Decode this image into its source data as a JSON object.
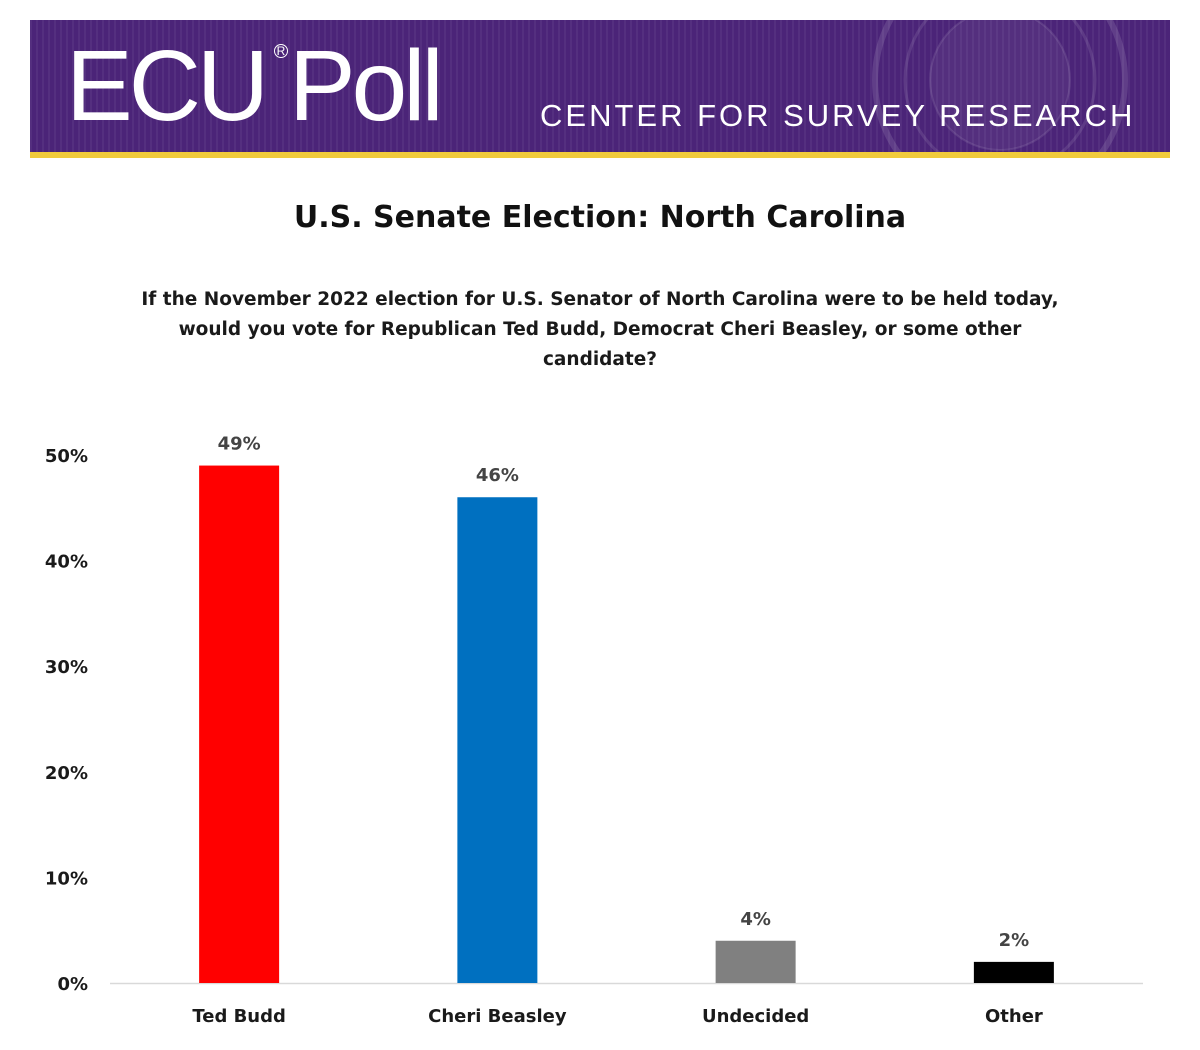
{
  "banner": {
    "logo_text": "ECU Poll",
    "subtitle": "CENTER FOR SURVEY RESEARCH",
    "bg_color": "#4b2478",
    "stripe_color": "#f1cb3c"
  },
  "chart_data": {
    "type": "bar",
    "title": "U.S. Senate Election: North Carolina",
    "question": "If the November 2022 election for U.S. Senator of North Carolina were to be held today, would you vote for Republican Ted Budd, Democrat Cheri Beasley, or some other candidate?",
    "categories": [
      "Ted Budd",
      "Cheri Beasley",
      "Undecided",
      "Other"
    ],
    "values": [
      49,
      46,
      4,
      2
    ],
    "value_labels": [
      "49%",
      "46%",
      "4%",
      "2%"
    ],
    "colors": [
      "#ff0000",
      "#0070c0",
      "#808080",
      "#000000"
    ],
    "xlabel": "",
    "ylabel": "",
    "ylim": [
      0,
      50
    ],
    "yticks": [
      0,
      10,
      20,
      30,
      40,
      50
    ],
    "ytick_labels": [
      "0%",
      "10%",
      "20%",
      "30%",
      "40%",
      "50%"
    ],
    "grid": false,
    "legend": "none"
  }
}
